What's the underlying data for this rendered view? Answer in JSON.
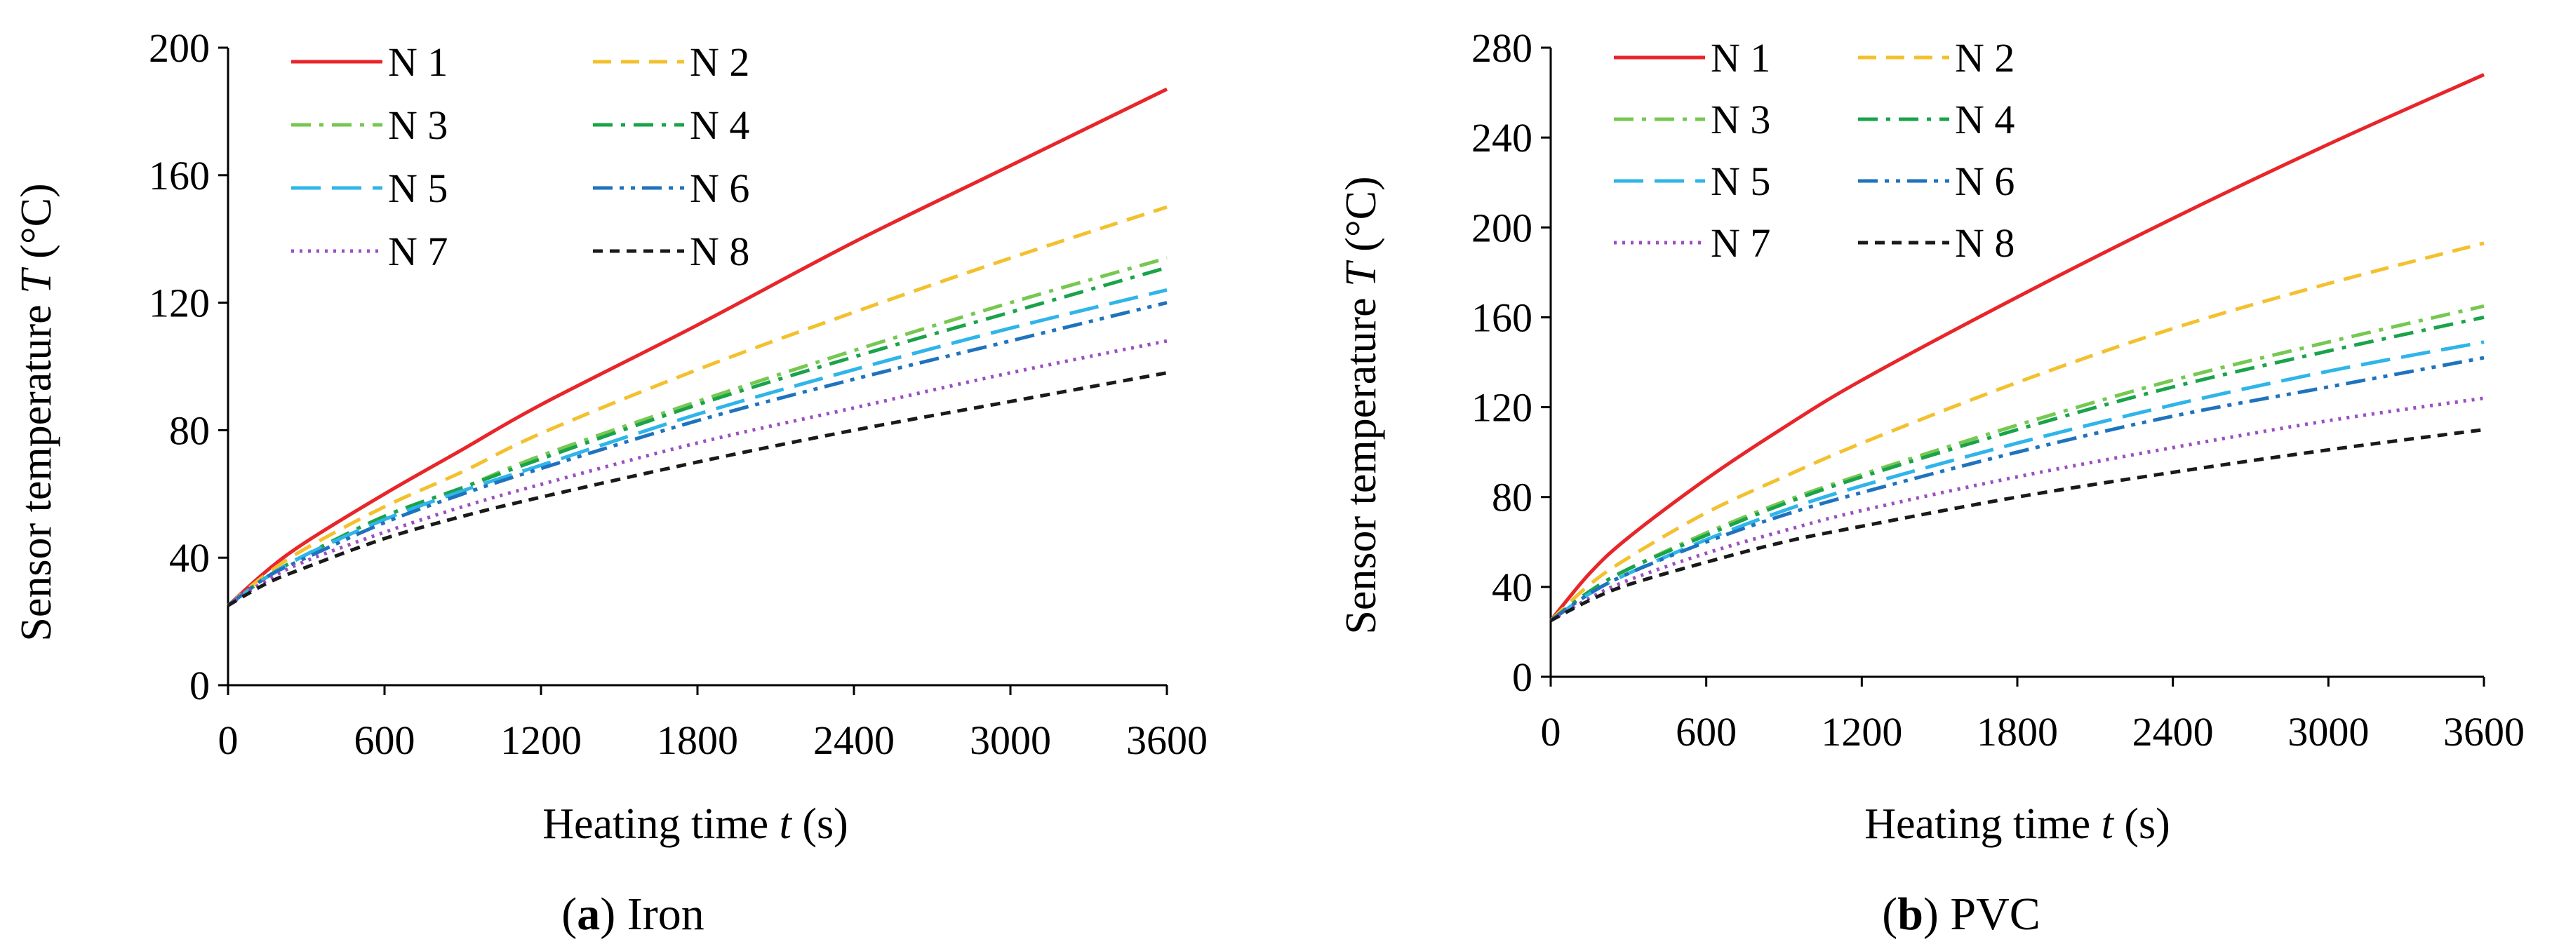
{
  "figure": {
    "panels": [
      {
        "caption": {
          "open": "(",
          "letter": "a",
          "close": ")",
          "text": " Iron"
        },
        "ylabel_prefix": "Sensor temperature ",
        "ylabel_symbol": "T",
        "ylabel_unit": " (°C)",
        "xlabel_prefix": "Heating time ",
        "xlabel_symbol": "t",
        "xlabel_unit": " (s)"
      },
      {
        "caption": {
          "open": "(",
          "letter": "b",
          "close": ")",
          "text": " PVC"
        },
        "ylabel_prefix": "Sensor temperature ",
        "ylabel_symbol": "T",
        "ylabel_unit": " (°C)",
        "xlabel_prefix": "Heating time ",
        "xlabel_symbol": "t",
        "xlabel_unit": " (s)"
      }
    ]
  },
  "chart_data": [
    {
      "type": "line",
      "title": "Iron",
      "xlabel": "Heating time t (s)",
      "ylabel": "Sensor temperature T (°C)",
      "xlim": [
        0,
        3600
      ],
      "ylim": [
        0,
        200
      ],
      "xticks": [
        0,
        600,
        1200,
        1800,
        2400,
        3000,
        3600
      ],
      "yticks": [
        0,
        40,
        80,
        120,
        160,
        200
      ],
      "x": [
        0,
        150,
        300,
        600,
        900,
        1200,
        1800,
        2400,
        3000,
        3600
      ],
      "legend_position": "top-left",
      "series": [
        {
          "name": "N 1",
          "color": "#e8262a",
          "dash": "solid",
          "values": [
            25,
            36,
            45,
            60,
            74,
            88,
            113,
            139,
            163,
            187
          ]
        },
        {
          "name": "N 2",
          "color": "#f3c12e",
          "dash": "dashed",
          "values": [
            25,
            35,
            43,
            56,
            67,
            79,
            99,
            117,
            134,
            150
          ]
        },
        {
          "name": "N 3",
          "color": "#76c851",
          "dash": "dash-dot",
          "values": [
            25,
            34,
            41,
            53,
            62,
            72,
            89,
            105,
            120,
            134
          ]
        },
        {
          "name": "N 4",
          "color": "#1aa34a",
          "dash": "dash-dot",
          "values": [
            25,
            34,
            41,
            53,
            62,
            71,
            88,
            103,
            117,
            131
          ]
        },
        {
          "name": "N 5",
          "color": "#2fb5e9",
          "dash": "long-dash",
          "values": [
            25,
            34,
            41,
            52,
            61,
            69,
            85,
            99,
            112,
            124
          ]
        },
        {
          "name": "N 6",
          "color": "#1f73bd",
          "dash": "dash-dot-dot",
          "values": [
            25,
            34,
            40,
            51,
            60,
            68,
            83,
            96,
            108,
            120
          ]
        },
        {
          "name": "N 7",
          "color": "#9b4fc2",
          "dash": "dotted",
          "values": [
            25,
            33,
            39,
            48,
            56,
            63,
            76,
            87,
            98,
            108
          ]
        },
        {
          "name": "N 8",
          "color": "#1a1a1a",
          "dash": "short-dash",
          "values": [
            25,
            32,
            37,
            46,
            53,
            59,
            70,
            80,
            89,
            98
          ]
        }
      ]
    },
    {
      "type": "line",
      "title": "PVC",
      "xlabel": "Heating time t (s)",
      "ylabel": "Sensor temperature T (°C)",
      "xlim": [
        0,
        3600
      ],
      "ylim": [
        0,
        280
      ],
      "xticks": [
        0,
        600,
        1200,
        1800,
        2400,
        3000,
        3600
      ],
      "yticks": [
        0,
        40,
        80,
        120,
        160,
        200,
        240,
        280
      ],
      "x": [
        0,
        150,
        300,
        600,
        900,
        1200,
        1800,
        2400,
        3000,
        3600
      ],
      "legend_position": "top-left",
      "series": [
        {
          "name": "N 1",
          "color": "#e8262a",
          "dash": "solid",
          "values": [
            25,
            46,
            62,
            88,
            111,
            132,
            169,
            204,
            237,
            268
          ]
        },
        {
          "name": "N 2",
          "color": "#f3c12e",
          "dash": "dashed",
          "values": [
            25,
            41,
            53,
            73,
            89,
            104,
            131,
            155,
            175,
            193
          ]
        },
        {
          "name": "N 3",
          "color": "#76c851",
          "dash": "dash-dot",
          "values": [
            25,
            38,
            48,
            64,
            78,
            90,
            112,
            132,
            149,
            165
          ]
        },
        {
          "name": "N 4",
          "color": "#1aa34a",
          "dash": "dash-dot",
          "values": [
            25,
            38,
            48,
            63,
            77,
            89,
            110,
            129,
            145,
            160
          ]
        },
        {
          "name": "N 5",
          "color": "#2fb5e9",
          "dash": "long-dash",
          "values": [
            25,
            37,
            46,
            61,
            74,
            85,
            104,
            121,
            136,
            149
          ]
        },
        {
          "name": "N 6",
          "color": "#1f73bd",
          "dash": "dash-dot-dot",
          "values": [
            25,
            37,
            46,
            60,
            72,
            82,
            100,
            116,
            129,
            142
          ]
        },
        {
          "name": "N 7",
          "color": "#9b4fc2",
          "dash": "dotted",
          "values": [
            25,
            35,
            43,
            55,
            65,
            74,
            89,
            102,
            114,
            124
          ]
        },
        {
          "name": "N 8",
          "color": "#1a1a1a",
          "dash": "short-dash",
          "values": [
            25,
            34,
            41,
            51,
            60,
            67,
            80,
            91,
            101,
            110
          ]
        }
      ]
    }
  ]
}
